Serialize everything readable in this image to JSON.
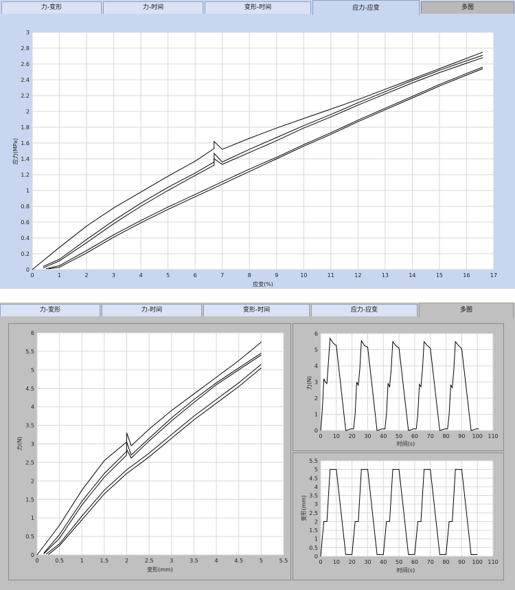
{
  "top_panel": {
    "tabs": [
      {
        "label": "力-变形"
      },
      {
        "label": "力-时间"
      },
      {
        "label": "变形-时间"
      },
      {
        "label": "应力-应变"
      },
      {
        "label": "多图"
      }
    ],
    "active_tab": "应力-应变"
  },
  "bottom_panel": {
    "tabs": [
      {
        "label": "力-变形"
      },
      {
        "label": "力-时间"
      },
      {
        "label": "变形-时间"
      },
      {
        "label": "应力-应变"
      },
      {
        "label": "多图"
      }
    ],
    "active_tab": "多图"
  },
  "chart_data": [
    {
      "id": "stress-strain",
      "type": "line",
      "xlabel": "应变(%)",
      "ylabel": "应力(MPa)",
      "xlim": [
        0,
        17
      ],
      "ylim": [
        0,
        3
      ],
      "xticks": [
        "0",
        "1",
        "2",
        "3",
        "4",
        "5",
        "6",
        "7",
        "8",
        "9",
        "10",
        "11",
        "12",
        "13",
        "14",
        "15",
        "16",
        "17"
      ],
      "yticks": [
        "0",
        "0.2",
        "0.4",
        "0.6",
        "0.8",
        "1",
        "1.2",
        "1.4",
        "1.6",
        "1.8",
        "2",
        "2.2",
        "2.4",
        "2.6",
        "2.8",
        "3"
      ],
      "grid": true,
      "series": [
        {
          "x": [
            0,
            1,
            2,
            3,
            4,
            5,
            6,
            6.7,
            6.7,
            7,
            8,
            9,
            10,
            11,
            12,
            13,
            14,
            15,
            16,
            16.6
          ],
          "y": [
            0,
            0.28,
            0.55,
            0.78,
            0.98,
            1.18,
            1.37,
            1.53,
            1.62,
            1.52,
            1.66,
            1.79,
            1.91,
            2.03,
            2.15,
            2.28,
            2.41,
            2.54,
            2.67,
            2.75
          ]
        },
        {
          "x": [
            0.4,
            1,
            2,
            3,
            4,
            5,
            6,
            6.7,
            6.7,
            7,
            8,
            9,
            10,
            11,
            12,
            13,
            14,
            15,
            16,
            16.6
          ],
          "y": [
            0.04,
            0.13,
            0.38,
            0.62,
            0.84,
            1.04,
            1.22,
            1.36,
            1.47,
            1.36,
            1.52,
            1.67,
            1.82,
            1.96,
            2.11,
            2.25,
            2.39,
            2.52,
            2.64,
            2.71
          ]
        },
        {
          "x": [
            0.4,
            1,
            2,
            3,
            4,
            5,
            6,
            6.7,
            6.7,
            7,
            8,
            9,
            10,
            11,
            12,
            13,
            14,
            15,
            16,
            16.6
          ],
          "y": [
            0.02,
            0.11,
            0.34,
            0.58,
            0.8,
            1.0,
            1.19,
            1.32,
            1.4,
            1.33,
            1.48,
            1.63,
            1.79,
            1.93,
            2.08,
            2.22,
            2.36,
            2.49,
            2.61,
            2.68
          ]
        },
        {
          "x": [
            0.5,
            1,
            2,
            3,
            4,
            5,
            6,
            7,
            8,
            9,
            10,
            11,
            12,
            13,
            14,
            15,
            16,
            16.6
          ],
          "y": [
            0.01,
            0.05,
            0.24,
            0.44,
            0.62,
            0.79,
            0.95,
            1.11,
            1.27,
            1.42,
            1.58,
            1.73,
            1.89,
            2.04,
            2.19,
            2.34,
            2.48,
            2.56
          ]
        },
        {
          "x": [
            0.6,
            1,
            2,
            3,
            4,
            5,
            6,
            7,
            8,
            9,
            10,
            11,
            12,
            13,
            14,
            15,
            16,
            16.6
          ],
          "y": [
            0.01,
            0.03,
            0.21,
            0.41,
            0.59,
            0.76,
            0.92,
            1.08,
            1.24,
            1.4,
            1.56,
            1.71,
            1.87,
            2.02,
            2.17,
            2.32,
            2.46,
            2.54
          ]
        }
      ]
    },
    {
      "id": "force-deformation",
      "type": "line",
      "xlabel": "变形(mm)",
      "ylabel": "力(N)",
      "xlim": [
        0,
        5.5
      ],
      "ylim": [
        0,
        6
      ],
      "xticks": [
        "0",
        "0.5",
        "1",
        "1.5",
        "2",
        "2.5",
        "3",
        "3.5",
        "4",
        "4.5",
        "5",
        "5.5"
      ],
      "yticks": [
        "0",
        "0.5",
        "1",
        "1.5",
        "2",
        "2.5",
        "3",
        "3.5",
        "4",
        "4.5",
        "5",
        "5.5",
        "6"
      ],
      "grid": true,
      "series": [
        {
          "x": [
            0,
            0.5,
            1,
            1.5,
            2,
            2,
            2.1,
            2.5,
            3,
            3.5,
            4,
            4.5,
            5
          ],
          "y": [
            0,
            0.8,
            1.75,
            2.55,
            3.05,
            3.3,
            2.95,
            3.4,
            3.9,
            4.35,
            4.8,
            5.25,
            5.75
          ]
        },
        {
          "x": [
            0.15,
            0.5,
            1,
            1.5,
            2,
            2,
            2.1,
            2.5,
            3,
            3.5,
            4,
            4.5,
            5
          ],
          "y": [
            0.05,
            0.55,
            1.45,
            2.2,
            2.8,
            3.05,
            2.7,
            3.15,
            3.7,
            4.2,
            4.65,
            5.05,
            5.45
          ]
        },
        {
          "x": [
            0.15,
            0.5,
            1,
            1.5,
            2,
            2,
            2.1,
            2.5,
            3,
            3.5,
            4,
            4.5,
            5
          ],
          "y": [
            0.03,
            0.45,
            1.35,
            2.1,
            2.7,
            2.85,
            2.62,
            3.08,
            3.62,
            4.12,
            4.6,
            5.0,
            5.4
          ]
        },
        {
          "x": [
            0.2,
            0.5,
            1,
            1.5,
            2,
            2.5,
            3,
            3.5,
            4,
            4.5,
            5
          ],
          "y": [
            0.02,
            0.3,
            1.05,
            1.75,
            2.3,
            2.75,
            3.25,
            3.75,
            4.2,
            4.65,
            5.15
          ]
        },
        {
          "x": [
            0.25,
            0.5,
            1,
            1.5,
            2,
            2.5,
            3,
            3.5,
            4,
            4.5,
            5
          ],
          "y": [
            0.01,
            0.25,
            0.95,
            1.65,
            2.2,
            2.65,
            3.15,
            3.65,
            4.1,
            4.55,
            5.05
          ]
        }
      ]
    },
    {
      "id": "force-time",
      "type": "line",
      "xlabel": "时间(s)",
      "ylabel": "力(N)",
      "xlim": [
        0,
        110
      ],
      "ylim": [
        0,
        6
      ],
      "xticks": [
        "0",
        "10",
        "20",
        "30",
        "40",
        "50",
        "60",
        "70",
        "80",
        "90",
        "100",
        "110"
      ],
      "yticks": [
        "0",
        "1",
        "2",
        "3",
        "4",
        "5",
        "6"
      ],
      "grid": true,
      "series": [
        {
          "x": [
            0,
            1,
            2,
            3,
            4,
            6,
            8,
            10,
            16,
            18,
            19,
            21,
            22,
            23,
            24,
            25,
            26,
            28,
            30,
            36,
            38,
            39,
            41,
            42,
            43,
            44,
            45,
            46,
            48,
            50,
            56,
            58,
            59,
            61,
            62,
            63,
            64,
            65,
            66,
            68,
            70,
            76,
            78,
            79,
            81,
            82,
            83,
            84,
            85,
            86,
            88,
            90,
            96,
            98,
            99,
            101
          ],
          "y": [
            0,
            1.2,
            3.2,
            3.0,
            2.9,
            5.7,
            5.4,
            5.25,
            0,
            0.05,
            0.1,
            0.1,
            1.0,
            3.0,
            2.8,
            3.8,
            5.55,
            5.25,
            5.15,
            0,
            0.05,
            0.1,
            0.1,
            1.0,
            2.9,
            2.7,
            3.8,
            5.5,
            5.25,
            5.1,
            0,
            0.05,
            0.1,
            0.1,
            1.0,
            2.85,
            2.7,
            3.8,
            5.5,
            5.25,
            5.1,
            0,
            0.05,
            0.1,
            0.1,
            1.0,
            2.8,
            2.65,
            3.8,
            5.5,
            5.25,
            5.05,
            0,
            0.05,
            0.1,
            0.1
          ]
        }
      ]
    },
    {
      "id": "deformation-time",
      "type": "line",
      "xlabel": "时间(s)",
      "ylabel": "变形(mm)",
      "xlim": [
        0,
        110
      ],
      "ylim": [
        0,
        5.5
      ],
      "xticks": [
        "0",
        "10",
        "20",
        "30",
        "40",
        "50",
        "60",
        "70",
        "80",
        "90",
        "100",
        "110"
      ],
      "yticks": [
        "0",
        "0.5",
        "1",
        "1.5",
        "2",
        "2.5",
        "3",
        "3.5",
        "4",
        "4.5",
        "5",
        "5.5"
      ],
      "grid": true,
      "series": [
        {
          "x": [
            0,
            2,
            4,
            6,
            8,
            10,
            16,
            18,
            20,
            22,
            24,
            26,
            28,
            30,
            36,
            38,
            40,
            42,
            44,
            46,
            48,
            50,
            56,
            58,
            60,
            62,
            64,
            66,
            68,
            70,
            76,
            78,
            80,
            82,
            84,
            86,
            88,
            90,
            96,
            98,
            100
          ],
          "y": [
            0,
            2,
            2,
            5,
            5,
            5,
            0.1,
            0.1,
            0.1,
            2,
            2,
            5,
            5,
            5,
            0.1,
            0.1,
            0.1,
            2,
            2,
            5,
            5,
            5,
            0.1,
            0.1,
            0.1,
            2,
            2,
            5,
            5,
            5,
            0.1,
            0.1,
            0.1,
            2,
            2,
            5,
            5,
            5,
            0.1,
            0.1,
            0.1
          ]
        }
      ]
    }
  ]
}
